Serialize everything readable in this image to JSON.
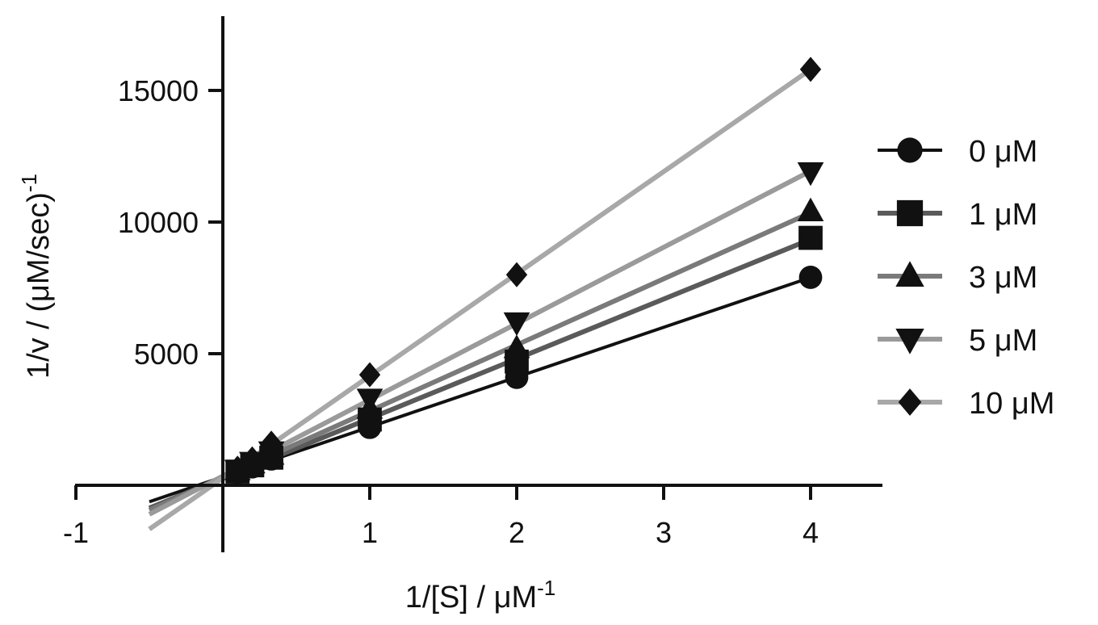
{
  "chart_data": {
    "type": "line",
    "title": "",
    "xlabel": "1/[S] / μM",
    "xlabel_sup": "-1",
    "ylabel": "1/v / (μM/sec)",
    "ylabel_sup": "-1",
    "xlim": [
      -1,
      4.5
    ],
    "ylim": [
      -2500,
      18000
    ],
    "xticks": [
      {
        "value": -1,
        "label": "-1"
      },
      {
        "value": 1,
        "label": "1"
      },
      {
        "value": 2,
        "label": "2"
      },
      {
        "value": 3,
        "label": "3"
      },
      {
        "value": 4,
        "label": "4"
      }
    ],
    "yticks": [
      {
        "value": 5000,
        "label": "5000"
      },
      {
        "value": 10000,
        "label": "10000"
      },
      {
        "value": 15000,
        "label": "15000"
      }
    ],
    "legend_position": "right",
    "grid": false,
    "series": [
      {
        "name": "0 μM",
        "marker": "circle",
        "color": "#111111",
        "fit_x": [
          -0.5,
          4
        ],
        "points": [
          {
            "x": 0.1,
            "y": 480
          },
          {
            "x": 0.2,
            "y": 700
          },
          {
            "x": 0.33,
            "y": 1000
          },
          {
            "x": 1,
            "y": 2200
          },
          {
            "x": 2,
            "y": 4100
          },
          {
            "x": 4,
            "y": 7900
          }
        ]
      },
      {
        "name": "1 μM",
        "marker": "square",
        "color": "#5a5a5a",
        "fit_x": [
          -0.5,
          4
        ],
        "points": [
          {
            "x": 0.1,
            "y": 520
          },
          {
            "x": 0.2,
            "y": 760
          },
          {
            "x": 0.33,
            "y": 1050
          },
          {
            "x": 1,
            "y": 2500
          },
          {
            "x": 2,
            "y": 4700
          },
          {
            "x": 4,
            "y": 9400
          }
        ]
      },
      {
        "name": "3 μM",
        "marker": "triangle-up",
        "color": "#7a7a7a",
        "fit_x": [
          -0.5,
          4
        ],
        "points": [
          {
            "x": 0.1,
            "y": 560
          },
          {
            "x": 0.2,
            "y": 820
          },
          {
            "x": 0.33,
            "y": 1150
          },
          {
            "x": 1,
            "y": 2900
          },
          {
            "x": 2,
            "y": 5200
          },
          {
            "x": 4,
            "y": 10400
          }
        ]
      },
      {
        "name": "5 μM",
        "marker": "triangle-down",
        "color": "#9a9a9a",
        "fit_x": [
          -0.5,
          4
        ],
        "points": [
          {
            "x": 0.1,
            "y": 600
          },
          {
            "x": 0.2,
            "y": 900
          },
          {
            "x": 0.33,
            "y": 1300
          },
          {
            "x": 1,
            "y": 3300
          },
          {
            "x": 2,
            "y": 6200
          },
          {
            "x": 4,
            "y": 11900
          }
        ]
      },
      {
        "name": "10 μM",
        "marker": "diamond",
        "color": "#a8a8a8",
        "fit_x": [
          -0.5,
          4
        ],
        "points": [
          {
            "x": 0.1,
            "y": 650
          },
          {
            "x": 0.2,
            "y": 1000
          },
          {
            "x": 0.33,
            "y": 1600
          },
          {
            "x": 1,
            "y": 4200
          },
          {
            "x": 2,
            "y": 8000
          },
          {
            "x": 4,
            "y": 15800
          }
        ]
      }
    ]
  }
}
